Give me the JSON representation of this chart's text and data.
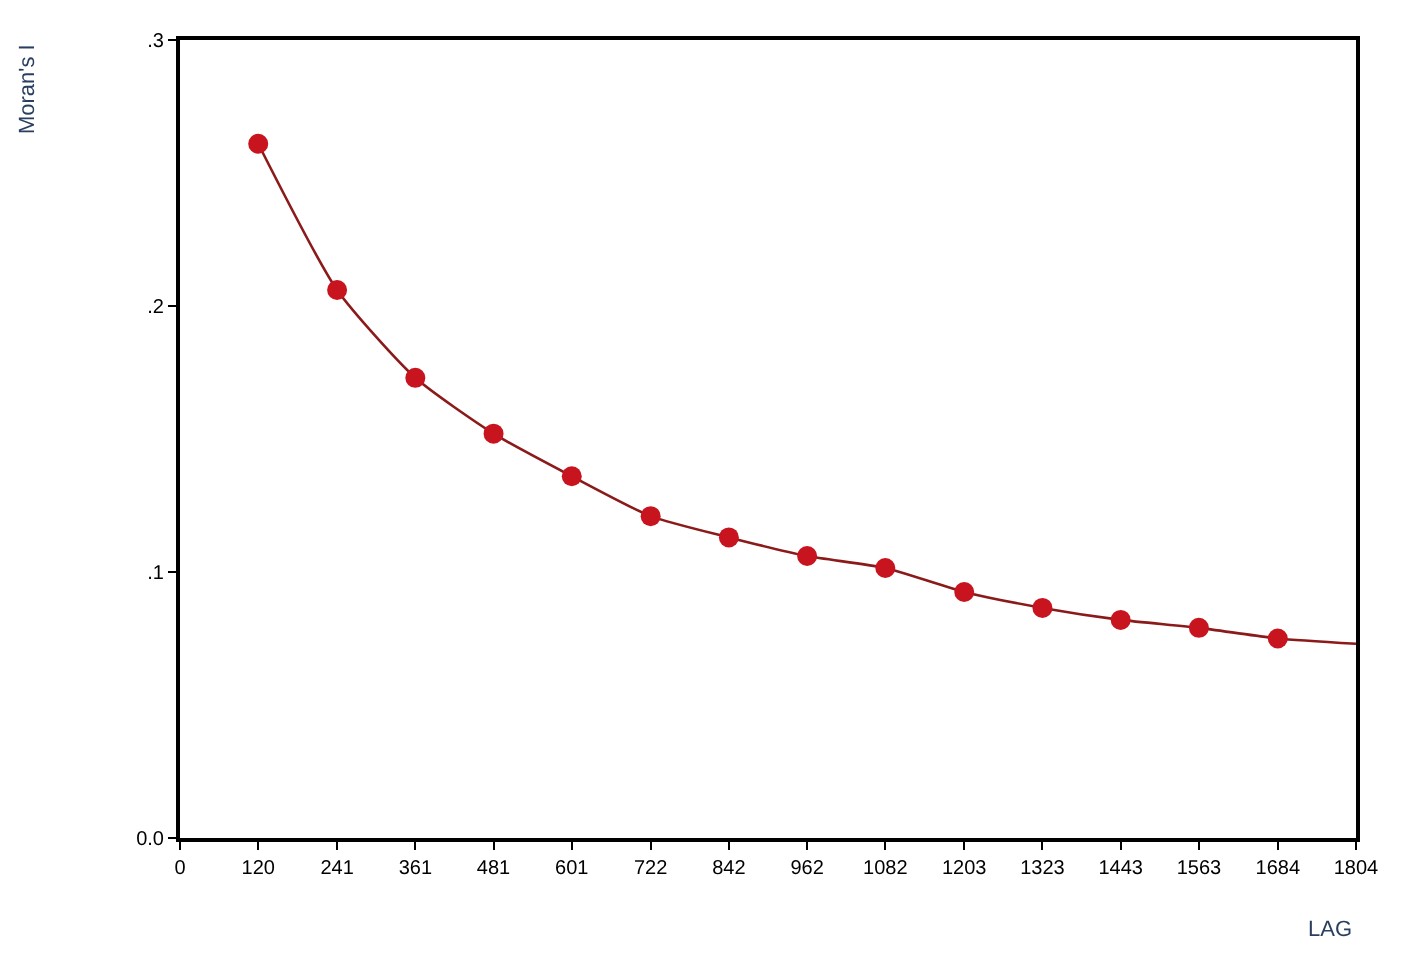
{
  "chart_data": {
    "type": "scatter",
    "xlabel": "LAG",
    "ylabel": "Moran's I",
    "xlim": [
      0,
      1804
    ],
    "ylim": [
      0,
      0.3
    ],
    "xticks": [
      0,
      120,
      241,
      361,
      481,
      601,
      722,
      842,
      962,
      1082,
      1203,
      1323,
      1443,
      1563,
      1684,
      1804
    ],
    "yticks": [
      {
        "value": 0,
        "label": "0.0"
      },
      {
        "value": 0.1,
        "label": ".1"
      },
      {
        "value": 0.2,
        "label": ".2"
      },
      {
        "value": 0.3,
        "label": ".3"
      }
    ],
    "grid": false,
    "legend": false,
    "series": [
      {
        "color": "#c8141e",
        "marker": "circle",
        "x": [
          120,
          241,
          361,
          481,
          601,
          722,
          842,
          962,
          1082,
          1203,
          1323,
          1443,
          1563,
          1684
        ],
        "values": [
          0.261,
          0.206,
          0.173,
          0.152,
          0.136,
          0.121,
          0.113,
          0.106,
          0.1015,
          0.0925,
          0.0865,
          0.082,
          0.079,
          0.075
        ]
      },
      {
        "type": "line",
        "color": "#8b1a1a",
        "line_style": "solid",
        "x": [
          120,
          241,
          361,
          481,
          601,
          722,
          842,
          962,
          1082,
          1203,
          1323,
          1443,
          1563,
          1684,
          1804
        ],
        "values": [
          0.261,
          0.206,
          0.173,
          0.152,
          0.136,
          0.121,
          0.113,
          0.106,
          0.1015,
          0.0925,
          0.0865,
          0.082,
          0.079,
          0.075,
          0.073
        ]
      }
    ]
  }
}
